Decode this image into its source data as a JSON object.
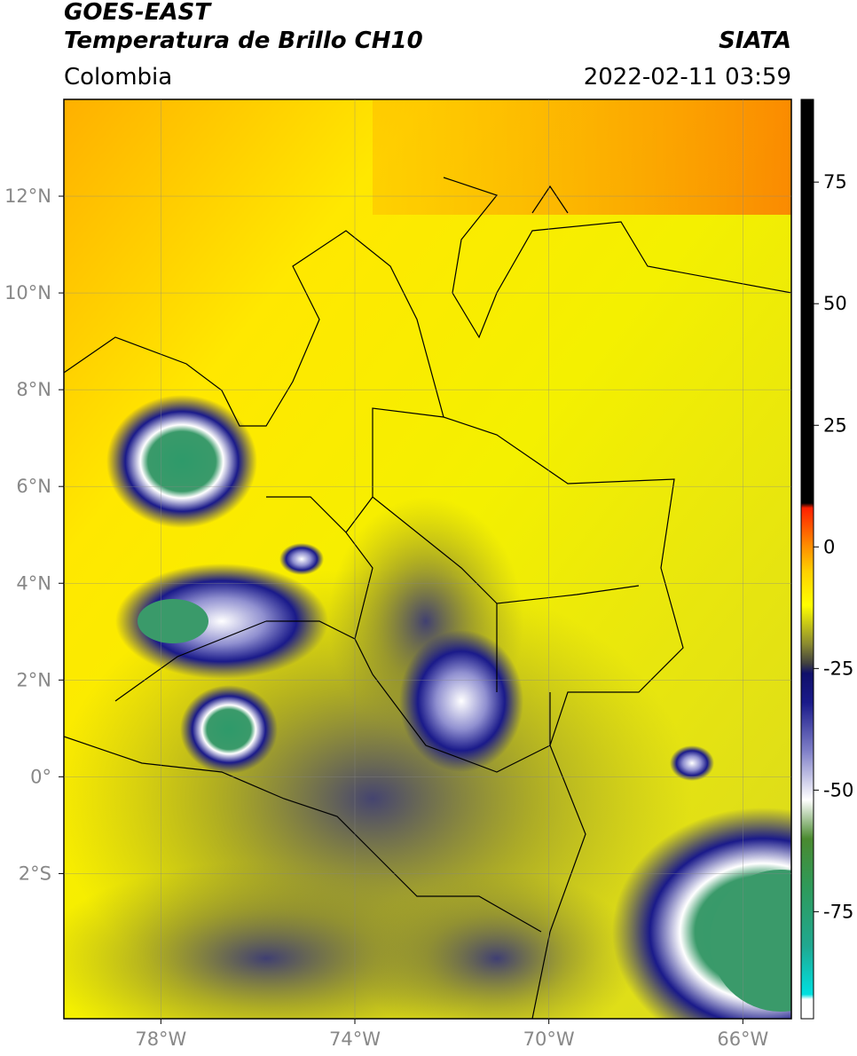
{
  "header": {
    "title": "GOES-EAST",
    "subtitle": "Temperatura de Brillo CH10",
    "source": "SIATA",
    "region": "Colombia",
    "timestamp": "2022-02-11 03:59"
  },
  "map": {
    "lonlim": [
      -80,
      -65
    ],
    "latlim": [
      -5,
      14
    ],
    "grid": true,
    "lon_ticks": [
      {
        "value": -78,
        "label": "78°W"
      },
      {
        "value": -74,
        "label": "74°W"
      },
      {
        "value": -70,
        "label": "70°W"
      },
      {
        "value": -66,
        "label": "66°W"
      }
    ],
    "lat_ticks": [
      {
        "value": 12,
        "label": "12°N"
      },
      {
        "value": 10,
        "label": "10°N"
      },
      {
        "value": 8,
        "label": "8°N"
      },
      {
        "value": 6,
        "label": "6°N"
      },
      {
        "value": 4,
        "label": "4°N"
      },
      {
        "value": 2,
        "label": "2°N"
      },
      {
        "value": 0,
        "label": "0°"
      },
      {
        "value": -2,
        "label": "2°S"
      }
    ]
  },
  "colorbar": {
    "lim": [
      -97,
      92
    ],
    "ticks": [
      75,
      50,
      25,
      0,
      -25,
      -50,
      -75
    ],
    "stops": [
      {
        "value": -97,
        "color": "#ffffff"
      },
      {
        "value": -93,
        "color": "#ffffff"
      },
      {
        "value": -92,
        "color": "#00e0e0"
      },
      {
        "value": -82,
        "color": "#20a890"
      },
      {
        "value": -70,
        "color": "#2e9a5a"
      },
      {
        "value": -60,
        "color": "#4a8a30"
      },
      {
        "value": -52,
        "color": "#ffffff"
      },
      {
        "value": -42,
        "color": "#8080c8"
      },
      {
        "value": -32,
        "color": "#1a1a8a"
      },
      {
        "value": -26,
        "color": "#10106a"
      },
      {
        "value": -24,
        "color": "#404040"
      },
      {
        "value": -20,
        "color": "#8a8a30"
      },
      {
        "value": -12,
        "color": "#ffff00"
      },
      {
        "value": -5,
        "color": "#ffd000"
      },
      {
        "value": 0,
        "color": "#ff9000"
      },
      {
        "value": 8,
        "color": "#ff2000"
      },
      {
        "value": 9,
        "color": "#000000"
      },
      {
        "value": 92,
        "color": "#000000"
      }
    ]
  }
}
